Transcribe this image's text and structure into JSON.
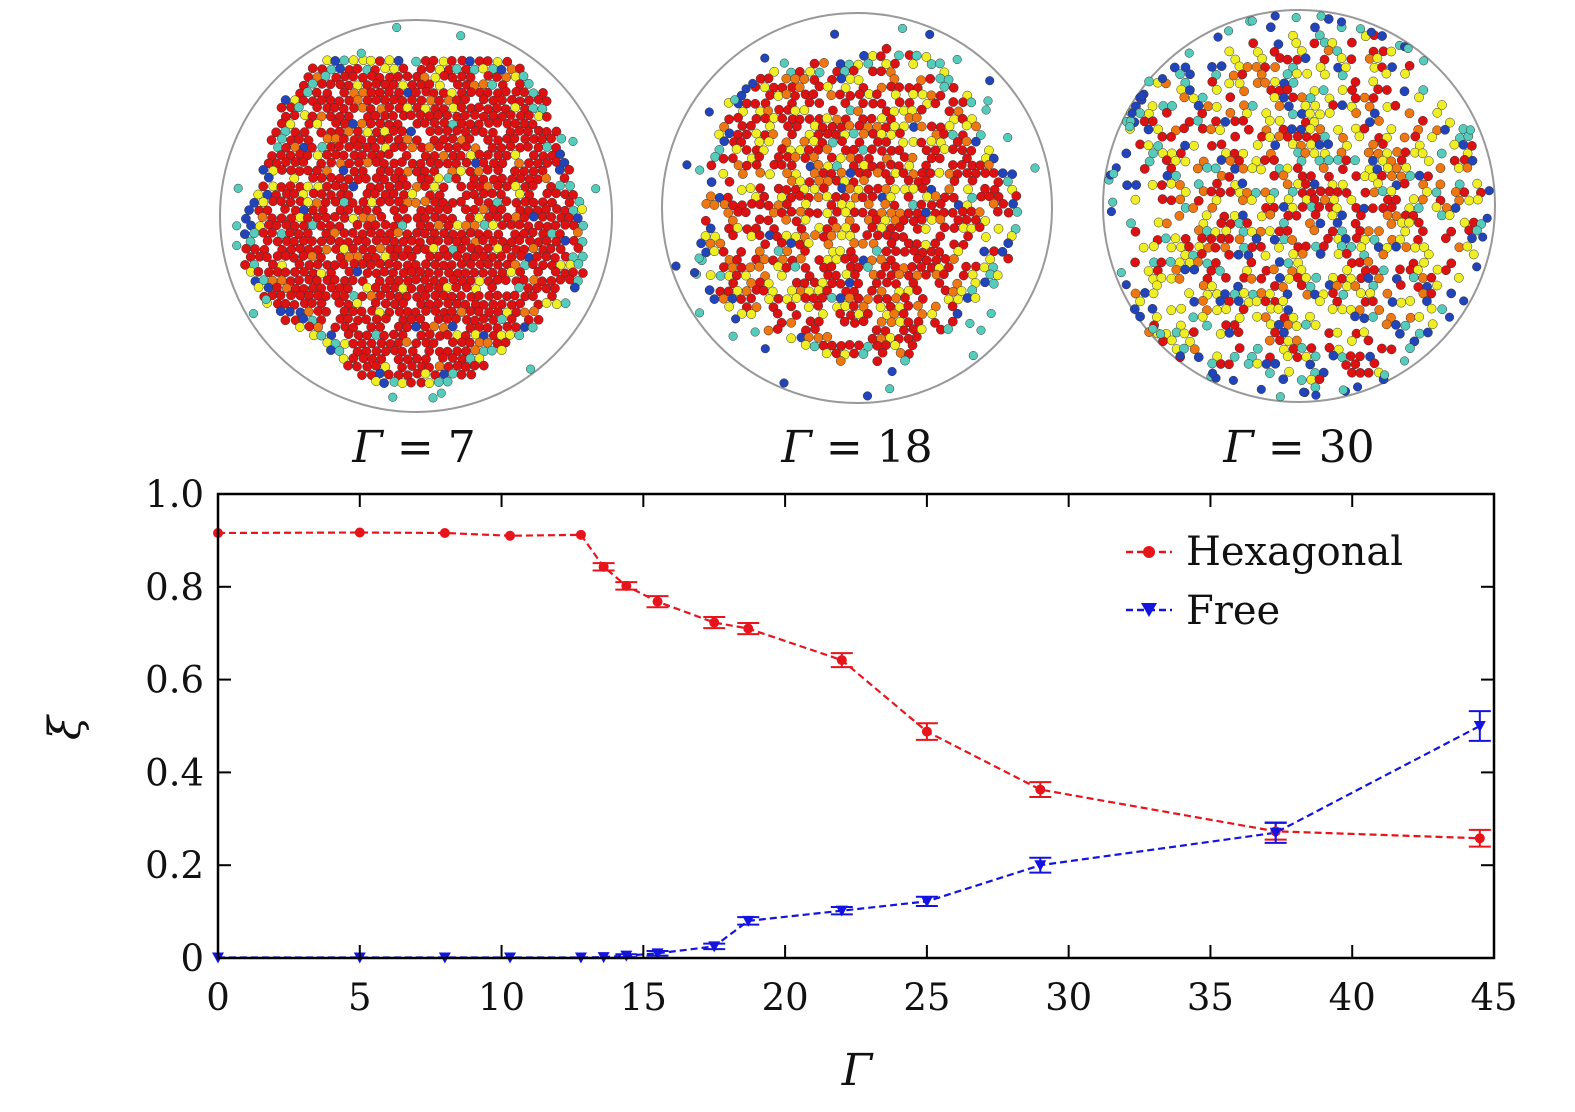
{
  "snapshots": [
    {
      "symbol": "Γ",
      "value": "7",
      "seed": 11,
      "dist": [
        0.86,
        0.06,
        0.05,
        0.02,
        0.01
      ],
      "fill": 0.94,
      "radiusFrac": 0.87,
      "frag": 0.05
    },
    {
      "symbol": "Γ",
      "value": "18",
      "seed": 23,
      "dist": [
        0.55,
        0.18,
        0.22,
        0.03,
        0.02
      ],
      "fill": 0.86,
      "radiusFrac": 0.82,
      "frag": 0.28
    },
    {
      "symbol": "Γ",
      "value": "30",
      "seed": 37,
      "dist": [
        0.3,
        0.18,
        0.3,
        0.12,
        0.1
      ],
      "fill": 0.7,
      "radiusFrac": 0.95,
      "frag": 0.45
    }
  ],
  "snapshot_colors": [
    "#dd1111",
    "#ee7711",
    "#eeee22",
    "#55ccbb",
    "#2244bb"
  ],
  "chart_data": {
    "type": "line",
    "xlabel": "Γ",
    "ylabel": "ξ",
    "xlim": [
      0,
      45
    ],
    "ylim": [
      0,
      1.0
    ],
    "xticks": [
      0,
      5,
      10,
      15,
      20,
      25,
      30,
      35,
      40,
      45
    ],
    "yticks": [
      0,
      0.2,
      0.4,
      0.6,
      0.8,
      1.0
    ],
    "xtick_labels": [
      "0",
      "5",
      "10",
      "15",
      "20",
      "25",
      "30",
      "35",
      "40",
      "45"
    ],
    "ytick_labels": [
      "0",
      "0.2",
      "0.4",
      "0.6",
      "0.8",
      "1.0"
    ],
    "legend_position": "top-right",
    "grid": false,
    "series": [
      {
        "name": "Hexagonal",
        "color": "#e8141c",
        "marker": "circle",
        "x": [
          0,
          5,
          8,
          10.3,
          12.8,
          13.6,
          14.4,
          15.5,
          17.5,
          18.7,
          22,
          25,
          29,
          37.3,
          44.5
        ],
        "y": [
          0.916,
          0.917,
          0.916,
          0.91,
          0.912,
          0.843,
          0.802,
          0.768,
          0.723,
          0.71,
          0.642,
          0.488,
          0.363,
          0.273,
          0.258
        ],
        "err": [
          0,
          0,
          0,
          0,
          0,
          0.008,
          0.008,
          0.012,
          0.012,
          0.012,
          0.015,
          0.018,
          0.016,
          0.018,
          0.018
        ]
      },
      {
        "name": "Free",
        "color": "#1414e0",
        "marker": "triangle-down",
        "x": [
          0,
          5,
          8,
          10.3,
          12.8,
          13.6,
          14.4,
          15.5,
          17.5,
          18.7,
          22,
          25,
          29,
          37.3,
          44.5
        ],
        "y": [
          0.001,
          0.001,
          0.001,
          0.001,
          0.001,
          0.002,
          0.005,
          0.01,
          0.025,
          0.08,
          0.102,
          0.122,
          0.2,
          0.27,
          0.5
        ],
        "err": [
          0,
          0,
          0,
          0,
          0,
          0,
          0.003,
          0.005,
          0.006,
          0.008,
          0.008,
          0.01,
          0.016,
          0.022,
          0.032
        ]
      }
    ]
  }
}
